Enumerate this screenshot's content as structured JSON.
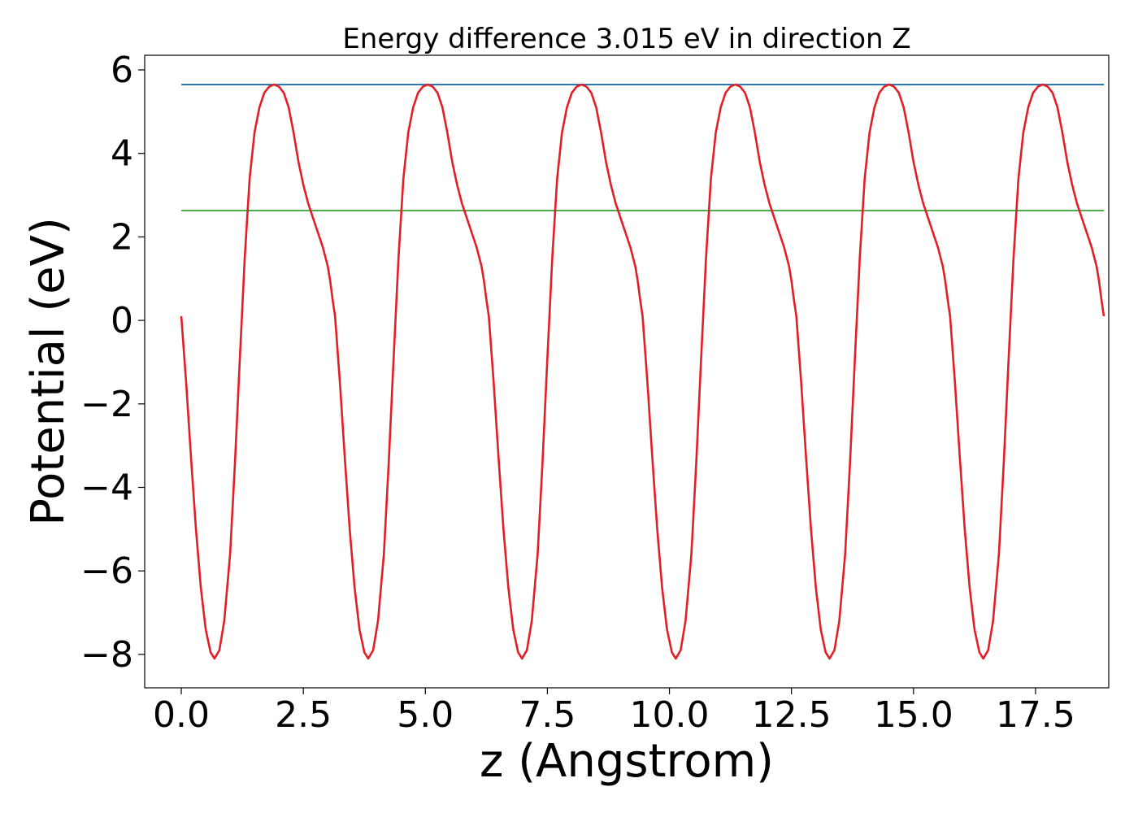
{
  "chart_data": {
    "type": "line",
    "title": "Energy difference 3.015 eV in direction Z",
    "xlabel": "z (Angstrom)",
    "ylabel": "Potential (eV)",
    "xlim": [
      -0.75,
      19.0
    ],
    "ylim": [
      -8.8,
      6.35
    ],
    "xticks": [
      0.0,
      2.5,
      5.0,
      7.5,
      10.0,
      12.5,
      15.0,
      17.5
    ],
    "xtick_labels": [
      "0.0",
      "2.5",
      "5.0",
      "7.5",
      "10.0",
      "12.5",
      "15.0",
      "17.5"
    ],
    "yticks": [
      6,
      4,
      2,
      0,
      -2,
      -4,
      -6,
      -8
    ],
    "ytick_labels": [
      "6",
      "4",
      "2",
      "0",
      "−2",
      "−4",
      "−6",
      "−8"
    ],
    "grid": false,
    "period": 3.15,
    "profile": [
      [
        0.0,
        0.1
      ],
      [
        0.1,
        -1.5
      ],
      [
        0.2,
        -3.3
      ],
      [
        0.3,
        -5.0
      ],
      [
        0.4,
        -6.4
      ],
      [
        0.5,
        -7.4
      ],
      [
        0.6,
        -7.95
      ],
      [
        0.68,
        -8.1
      ],
      [
        0.78,
        -7.9
      ],
      [
        0.88,
        -7.2
      ],
      [
        1.0,
        -5.6
      ],
      [
        1.1,
        -3.4
      ],
      [
        1.2,
        -0.9
      ],
      [
        1.3,
        1.5
      ],
      [
        1.4,
        3.4
      ],
      [
        1.5,
        4.5
      ],
      [
        1.6,
        5.1
      ],
      [
        1.7,
        5.45
      ],
      [
        1.8,
        5.6
      ],
      [
        1.9,
        5.65
      ],
      [
        2.0,
        5.6
      ],
      [
        2.1,
        5.45
      ],
      [
        2.2,
        5.1
      ],
      [
        2.3,
        4.5
      ],
      [
        2.4,
        3.8
      ],
      [
        2.5,
        3.25
      ],
      [
        2.6,
        2.8
      ],
      [
        2.7,
        2.45
      ],
      [
        2.8,
        2.1
      ],
      [
        2.9,
        1.75
      ],
      [
        3.0,
        1.3
      ],
      [
        3.05,
        0.95
      ],
      [
        3.1,
        0.5
      ],
      [
        3.15,
        0.1
      ]
    ],
    "x_end": 18.9,
    "series": [
      {
        "values": "profile",
        "color": "#e21f26"
      }
    ],
    "hlines": [
      {
        "y": 5.65,
        "x": [
          0.0,
          18.9
        ],
        "color": "#2b7bba"
      },
      {
        "y": 2.63,
        "x": [
          0.0,
          18.9
        ],
        "color": "#4daf4a"
      }
    ]
  }
}
